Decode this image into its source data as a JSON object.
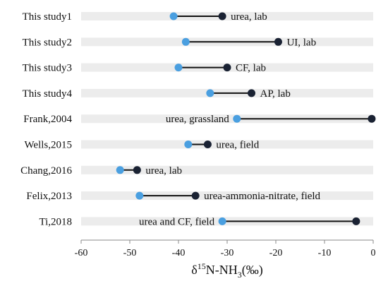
{
  "chart_data": {
    "type": "dumbbell",
    "xlabel": "δ15N-NH3(‰)",
    "xlabel_parts": {
      "main": "δ",
      "sup": "15",
      "mid": "N-NH",
      "sub": "3",
      "end": "(‰)"
    },
    "xlim": [
      -60,
      0
    ],
    "xticks": [
      -60,
      -50,
      -40,
      -30,
      -20,
      -10,
      0
    ],
    "grid": false,
    "colors": {
      "light": "#4a9fe0",
      "dark": "#1a2233",
      "band": "#ececec",
      "line": "#111111"
    },
    "rows": [
      {
        "label": "This study1",
        "light": -41,
        "dark": -31,
        "annotation": "urea, lab"
      },
      {
        "label": "This study2",
        "light": -38.5,
        "dark": -19.5,
        "annotation": "UI, lab"
      },
      {
        "label": "This study3",
        "light": -40,
        "dark": -30,
        "annotation": "CF, lab"
      },
      {
        "label": "This study4",
        "light": -33.5,
        "dark": -25,
        "annotation": "AP, lab"
      },
      {
        "label": "Frank,2004",
        "light": -28,
        "dark": -0.3,
        "annotation": "urea, grassland"
      },
      {
        "label": "Wells,2015",
        "light": -38,
        "dark": -34,
        "annotation": "urea, field"
      },
      {
        "label": "Chang,2016",
        "light": -52,
        "dark": -48.5,
        "annotation": "urea, lab"
      },
      {
        "label": "Felix,2013",
        "light": -48,
        "dark": -36.5,
        "annotation": "urea-ammonia-nitrate, field"
      },
      {
        "label": "Ti,2018",
        "light": -31,
        "dark": -3.5,
        "annotation": "urea and CF, field"
      }
    ]
  }
}
